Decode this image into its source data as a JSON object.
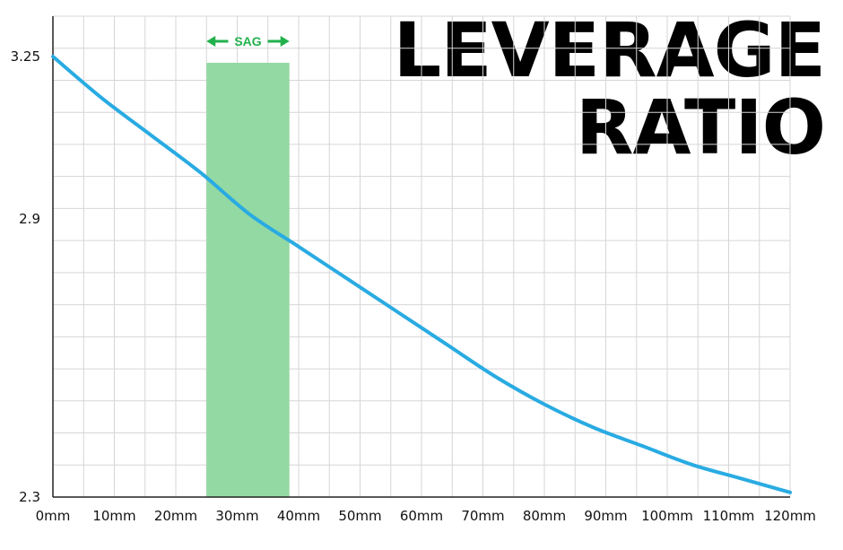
{
  "title_line1": "LEVERAGE",
  "title_line2": "RATIO",
  "chart_data": {
    "type": "line",
    "title": "LEVERAGE RATIO",
    "x": [
      0,
      10,
      20,
      30,
      40,
      50,
      60,
      70,
      80,
      90,
      100,
      110,
      120
    ],
    "x_tick_labels": [
      "0mm",
      "10mm",
      "20mm",
      "30mm",
      "40mm",
      "50mm",
      "60mm",
      "70mm",
      "80mm",
      "90mm",
      "100mm",
      "110mm",
      "120mm"
    ],
    "y_tick_values": [
      3.25,
      2.9,
      2.3
    ],
    "y_tick_labels": [
      "3.25",
      "2.9",
      "2.3"
    ],
    "xlim": [
      0,
      120
    ],
    "ylim": [
      2.3,
      3.25
    ],
    "grid": true,
    "series": [
      {
        "values": [
          3.25,
          3.16,
          3.08,
          3.0,
          2.91,
          2.84,
          2.77,
          2.7,
          2.63,
          2.56,
          2.5,
          2.45,
          2.41,
          2.37,
          2.34,
          2.31
        ],
        "x": [
          0,
          8,
          16,
          24,
          32,
          40,
          48,
          56,
          64,
          72,
          80,
          88,
          96,
          104,
          112,
          120
        ],
        "color": "#29abe2"
      }
    ],
    "annotations": [
      {
        "type": "band",
        "label": "SAG",
        "x_range": [
          25,
          38.5
        ],
        "color": "#93d9a4",
        "label_color": "#22b14c"
      }
    ]
  }
}
